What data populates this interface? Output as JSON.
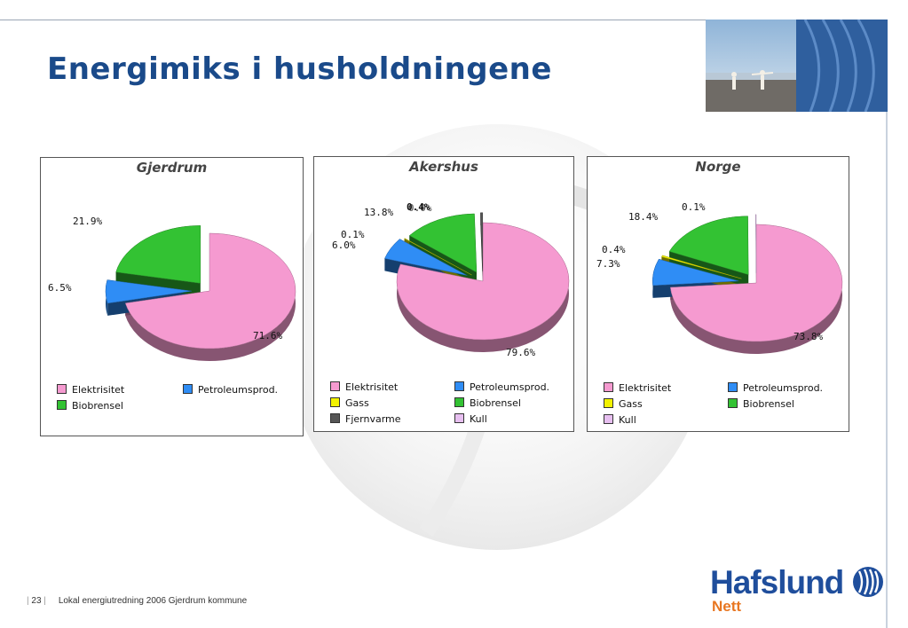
{
  "slide": {
    "title": "Energimiks i husholdningene",
    "page_number": "23",
    "footer_text": "Lokal energiutredning 2006 Gjerdrum kommune"
  },
  "logo": {
    "name": "Hafslund",
    "sub": "Nett",
    "icon": "hafslund-wave-logo-icon"
  },
  "colors": {
    "Elektrisitet": "#f59ad0",
    "Petroleumsprod.": "#2f8df5",
    "Gass": "#f2f200",
    "Biobrensel": "#33c233",
    "Fjernvarme": "#555555",
    "Kull": "#e7bff0"
  },
  "chart_data": [
    {
      "type": "pie",
      "title": "Gjerdrum",
      "slices": [
        {
          "label": "Elektrisitet",
          "value": 71.6,
          "display": "71.6%"
        },
        {
          "label": "Petroleumsprod.",
          "value": 6.5,
          "display": "6.5%"
        },
        {
          "label": "Biobrensel",
          "value": 21.9,
          "display": "21.9%"
        }
      ],
      "legend": [
        "Elektrisitet",
        "Petroleumsprod.",
        "Biobrensel"
      ]
    },
    {
      "type": "pie",
      "title": "Akershus",
      "slices": [
        {
          "label": "Elektrisitet",
          "value": 79.6,
          "display": "79.6%"
        },
        {
          "label": "Petroleumsprod.",
          "value": 6.0,
          "display": "6.0%"
        },
        {
          "label": "Gass",
          "value": 0.1,
          "display": "0.1%"
        },
        {
          "label": "Biobrensel",
          "value": 13.8,
          "display": "13.8%"
        },
        {
          "label": "Fjernvarme",
          "value": 0.4,
          "display": "0.4%"
        },
        {
          "label": "Kull",
          "value": 0.0,
          "display": "0.0%"
        }
      ],
      "legend": [
        "Elektrisitet",
        "Petroleumsprod.",
        "Gass",
        "Biobrensel",
        "Fjernvarme",
        "Kull"
      ]
    },
    {
      "type": "pie",
      "title": "Norge",
      "slices": [
        {
          "label": "Elektrisitet",
          "value": 73.8,
          "display": "73.8%"
        },
        {
          "label": "Petroleumsprod.",
          "value": 7.3,
          "display": "7.3%"
        },
        {
          "label": "Gass",
          "value": 0.4,
          "display": "0.4%"
        },
        {
          "label": "Biobrensel",
          "value": 18.4,
          "display": "18.4%"
        },
        {
          "label": "Kull",
          "value": 0.1,
          "display": "0.1%"
        }
      ],
      "legend": [
        "Elektrisitet",
        "Petroleumsprod.",
        "Gass",
        "Biobrensel",
        "Kull"
      ]
    }
  ]
}
